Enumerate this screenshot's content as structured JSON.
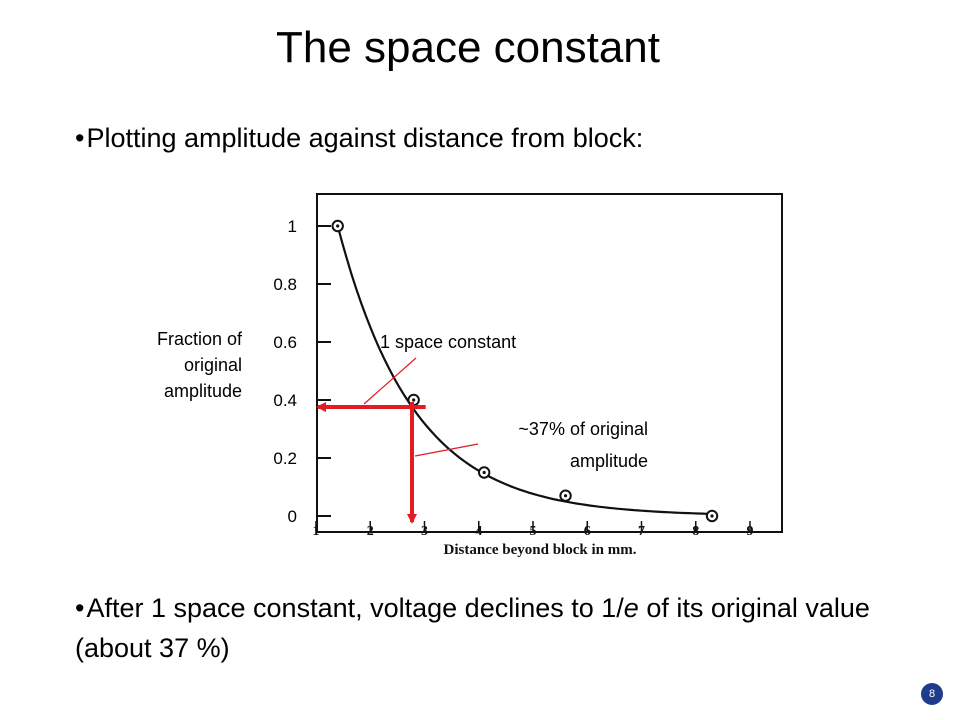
{
  "slide": {
    "title": "The space constant",
    "bullet_symbol": "•",
    "bullet_1": "Plotting amplitude against distance from block:",
    "bullet_2_before": "After 1 space constant, voltage declines to 1/",
    "bullet_2_italic": "e",
    "bullet_2_after": " of its original value (about 37 %)",
    "page_number": "8"
  },
  "chart_data": {
    "type": "scatter",
    "title": "",
    "xlabel": "Distance beyond block in mm.",
    "ylabel_lines": [
      "Fraction of",
      "original",
      "amplitude"
    ],
    "x_ticks": [
      "1",
      "2",
      "3",
      "4",
      "5",
      "6",
      "7",
      "8",
      "9"
    ],
    "y_ticks": [
      "1",
      "0.8",
      "0.6",
      "0.4",
      "0.2",
      "0"
    ],
    "xlim": [
      1,
      9
    ],
    "ylim": [
      0,
      1
    ],
    "grid": false,
    "series": [
      {
        "x": [
          1.4,
          2.8,
          4.1,
          5.6,
          8.3
        ],
        "y": [
          1.0,
          0.4,
          0.15,
          0.07,
          0.0
        ]
      }
    ],
    "curve_decay_constant_mm": 1.4,
    "space_constant_marker": {
      "x": 2.8,
      "y": 0.4
    },
    "annotations": {
      "space_constant": "1 space constant",
      "percent_line_1": "~37% of original",
      "percent_line_2": "amplitude"
    },
    "colors": {
      "marker_arrows": "#e31b23",
      "callout_lines": "#e31b23",
      "curve": "#111111",
      "frame": "#111111"
    }
  }
}
